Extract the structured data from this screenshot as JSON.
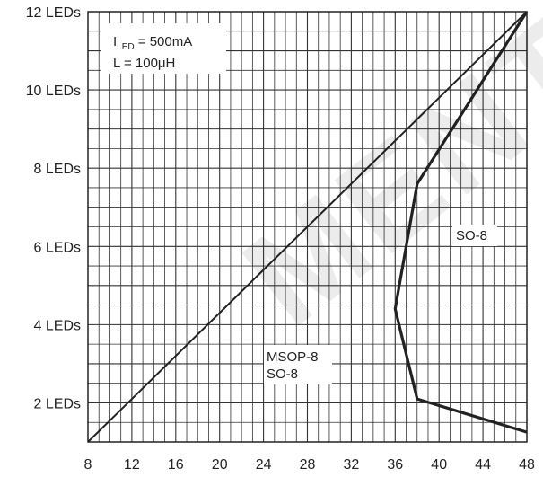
{
  "chart_data": {
    "type": "line",
    "title": "",
    "xlabel": "",
    "ylabel": "",
    "xlim": [
      8,
      48
    ],
    "ylim": [
      1,
      12
    ],
    "x_ticks": [
      8,
      12,
      16,
      20,
      24,
      28,
      32,
      36,
      40,
      44,
      48
    ],
    "y_ticks": [
      {
        "value": 2,
        "label": "2 LEDs"
      },
      {
        "value": 4,
        "label": "4 LEDs"
      },
      {
        "value": 6,
        "label": "6 LEDs"
      },
      {
        "value": 8,
        "label": "8 LEDs"
      },
      {
        "value": 10,
        "label": "10 LEDs"
      },
      {
        "value": 12,
        "label": "12 LEDs"
      }
    ],
    "grid": true,
    "series": [
      {
        "name": "MSOP-8 / SO-8",
        "color": "#222222",
        "points": [
          [
            8,
            1
          ],
          [
            48,
            12
          ]
        ]
      },
      {
        "name": "SO-8",
        "color": "#222222",
        "points": [
          [
            48,
            12
          ],
          [
            38,
            7.6
          ],
          [
            36,
            4.4
          ],
          [
            38,
            2.1
          ],
          [
            48,
            1.25
          ]
        ]
      }
    ],
    "annotations": {
      "conditions": {
        "iled_prefix": "I",
        "iled_sub": "LED",
        "iled_value": " = 500mA",
        "inductance": "L =  100μH"
      },
      "msop_label_line1": "MSOP-8",
      "msop_label_line2": "SO-8",
      "so8_label": "SO-8"
    }
  }
}
